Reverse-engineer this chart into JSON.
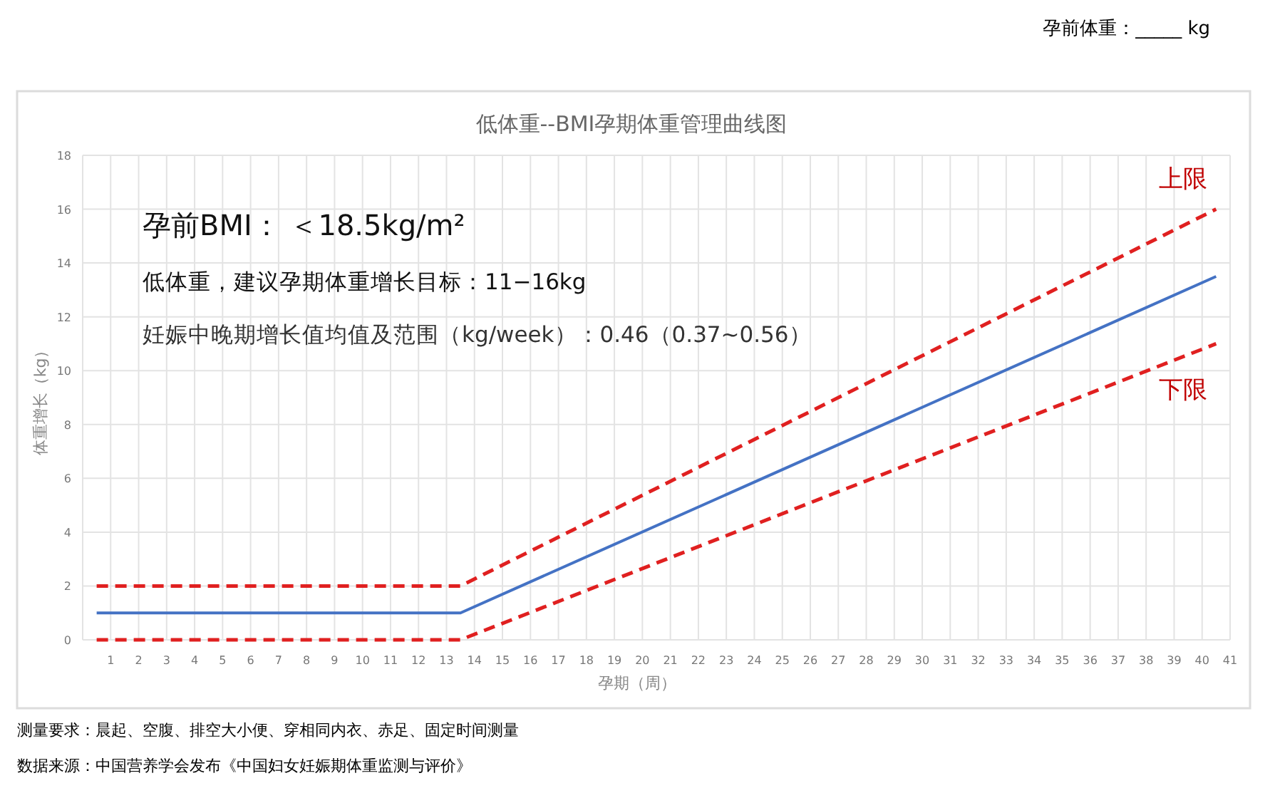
{
  "chart_data": {
    "type": "line",
    "title": "低体重--BMI孕期体重管理曲线图",
    "xlabel": "孕期（周）",
    "ylabel": "体重增长（kg）",
    "x": [
      0.5,
      13.5,
      40.5
    ],
    "series": [
      {
        "color": "#4472c4",
        "values": [
          1,
          1,
          13.5
        ],
        "line_style": "solid"
      },
      {
        "name": "上限",
        "color": "#e02020",
        "values": [
          2,
          2,
          16
        ],
        "line_style": "dashed"
      },
      {
        "name": "下限",
        "color": "#e02020",
        "values": [
          0,
          0,
          11
        ],
        "line_style": "dashed"
      }
    ],
    "xlim": [
      0,
      41
    ],
    "xticks": [
      1,
      2,
      3,
      4,
      5,
      6,
      7,
      8,
      9,
      10,
      11,
      12,
      13,
      14,
      15,
      16,
      17,
      18,
      19,
      20,
      21,
      22,
      23,
      24,
      25,
      26,
      27,
      28,
      29,
      30,
      31,
      32,
      33,
      34,
      35,
      36,
      37,
      38,
      39,
      40,
      41
    ],
    "ylim": [
      0,
      18
    ],
    "yticks": [
      0,
      2,
      4,
      6,
      8,
      10,
      12,
      14,
      16,
      18
    ],
    "grid": true,
    "legend": false,
    "marker": "none",
    "annotations": [
      "孕前BMI： ＜18.5kg/m²",
      "低体重，建议孕期体重增长目标：11−16kg",
      "妊娠中晚期增长值均值及范围（kg/week）：0.46（0.37~0.56）",
      "测量要求：晨起、空腹、排空大小便、穿相同内衣、赤足、固定时间测量",
      "数据来源：中国营养学会发布《中国妇女妊娠期体重监测与评价》",
      "孕前体重：_____ kg"
    ]
  }
}
